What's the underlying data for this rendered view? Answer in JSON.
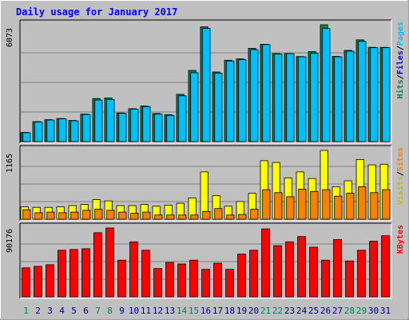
{
  "chart_data": {
    "type": "bar",
    "title": "Daily usage for January 2017",
    "categories": [
      "1",
      "2",
      "3",
      "4",
      "5",
      "6",
      "7",
      "8",
      "9",
      "10",
      "11",
      "12",
      "13",
      "14",
      "15",
      "16",
      "17",
      "18",
      "19",
      "20",
      "21",
      "22",
      "23",
      "24",
      "25",
      "26",
      "27",
      "28",
      "29",
      "30",
      "31"
    ],
    "weekend_days": [
      "1",
      "7",
      "8",
      "14",
      "15",
      "21",
      "22",
      "28",
      "29"
    ],
    "panels": [
      {
        "id": "top",
        "ymax": 6073,
        "ymax_label": "6073",
        "axis_labels": [
          "Pages",
          "Files",
          "Hits"
        ],
        "series": [
          {
            "name": "Hits",
            "color": "#00805C",
            "values": [
              480,
              1040,
              1140,
              1200,
              1100,
              1430,
              2240,
              2270,
              1490,
              1710,
              1850,
              1460,
              1400,
              2460,
              3700,
              5970,
              3620,
              4230,
              4300,
              4850,
              5060,
              4570,
              4570,
              4420,
              4680,
              6073,
              4430,
              4740,
              5290,
              4900,
              4900
            ]
          },
          {
            "name": "Files",
            "color": "#00C0FF",
            "values": [
              460,
              1020,
              1120,
              1180,
              1080,
              1410,
              2160,
              2190,
              1470,
              1690,
              1820,
              1430,
              1360,
              2380,
              3580,
              5880,
              3560,
              4190,
              4260,
              4780,
              5040,
              4550,
              4570,
              4410,
              4590,
              5880,
              4410,
              4700,
              5210,
              4880,
              4880
            ]
          },
          {
            "name": "Pages",
            "color": "#0000FF",
            "values": [
              0,
              0,
              0,
              0,
              0,
              0,
              0,
              0,
              0,
              0,
              0,
              0,
              0,
              0,
              0,
              0,
              0,
              0,
              0,
              0,
              0,
              0,
              0,
              0,
              0,
              0,
              0,
              0,
              0,
              0,
              0
            ]
          }
        ]
      },
      {
        "id": "middle",
        "ymax": 1165,
        "ymax_label": "1165",
        "axis_labels": [
          "Sites",
          "Visits"
        ],
        "series": [
          {
            "name": "Visits",
            "color": "#FFFF00",
            "values": [
              210,
              200,
              200,
              210,
              230,
              250,
              330,
              310,
              230,
              230,
              250,
              220,
              240,
              270,
              360,
              800,
              400,
              220,
              300,
              440,
              990,
              960,
              700,
              800,
              690,
              1165,
              550,
              650,
              1010,
              920,
              930
            ]
          },
          {
            "name": "Sites",
            "color": "#FF8000",
            "values": [
              160,
              110,
              120,
              110,
              120,
              150,
              170,
              150,
              120,
              100,
              120,
              70,
              70,
              70,
              70,
              130,
              180,
              70,
              80,
              170,
              500,
              450,
              380,
              510,
              470,
              500,
              390,
              440,
              550,
              450,
              500
            ]
          }
        ]
      },
      {
        "id": "bottom",
        "ymax": 90176,
        "ymax_label": "90176",
        "axis_labels": [
          "KBytes"
        ],
        "series": [
          {
            "name": "KBytes",
            "color": "#FF0000",
            "values": [
              38000,
              40000,
              42000,
              61000,
              62000,
              63000,
              84000,
              90176,
              48000,
              72000,
              61000,
              37000,
              45000,
              43000,
              48000,
              36000,
              44000,
              36000,
              56000,
              61000,
              89000,
              67000,
              72000,
              79000,
              65000,
              48000,
              75000,
              47000,
              61000,
              73000,
              80000
            ]
          }
        ]
      }
    ]
  }
}
